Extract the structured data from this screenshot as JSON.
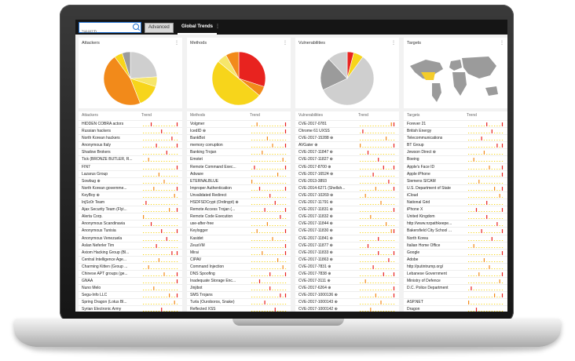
{
  "search": {
    "placeholder": "Search"
  },
  "toolbar": {
    "advanced_label": "Advanced"
  },
  "tabs": [
    {
      "label": "Global Trends",
      "menu": "⋮"
    }
  ],
  "colors": {
    "red": "#e8231f",
    "orange": "#f28a1a",
    "yellow": "#f7d51b",
    "light_yellow": "#f6e66a",
    "gray": "#cfcfcf",
    "dark_gray": "#9b9b9b",
    "map_highlight": "#f4cc2a"
  },
  "panels": [
    {
      "title": "Attackers",
      "menu": "⋮",
      "col1": "Attackers",
      "col2": "Trend",
      "chart": "pie",
      "rows": [
        "HIDDEN COBRA actors",
        "Russian hackers",
        "North Korean hackers",
        "Anonymous Italy",
        "Shadow Brokers",
        "Tick (BRONZE BUTLER, R...",
        "FIN7",
        "Lazarus Group",
        "Sowbug ⊕",
        "North Korean governme...",
        "KeyBoy ⊕",
        "InjSc0r Team",
        "Ajax Security Team (Flyi...",
        "Alerta Corp.",
        "Anonymous Scandinavia",
        "Anonymous Tunisia",
        "Anonymous Venezuela",
        "Aslan Neferler Tim",
        "Axiom Hacking Group (Bl...",
        "Central Intelligence Age...",
        "Charming Kitten (Group ...",
        "Chinese APT groups (ge...",
        "GNAA",
        "Nuno Melo",
        "Segu-Info LLC",
        "Spring Dragon (Lotus Bl...",
        "Syrian Electronic Army"
      ]
    },
    {
      "title": "Methods",
      "menu": "⋮",
      "col1": "Methods",
      "col2": "Trend",
      "chart": "pie",
      "rows": [
        "Volgmer",
        "IcedID ⊕",
        "BankBot",
        "memory corruption",
        "Banking Trojan",
        "Emotet",
        "Remote Command Exec...",
        "Adware",
        "ETERNALBLUE",
        "Improper Authentication",
        "Unvalidated Redirect",
        "HSDFSDCrypt (Ordinypt) ⊕",
        "Remote Access Trojan (...",
        "Remote Code Execution",
        "use-after-free",
        "Keylogger",
        "Kasidet",
        "ZeusVM",
        "Mirai",
        "CIPAV",
        "Command Injection",
        "DNS Spoofing",
        "Inadequate Storage Enc...",
        "Jinjibot",
        "SMS Trojans",
        "Turla (Ouroboros, Snake)",
        "Reflected XSS"
      ]
    },
    {
      "title": "Vulnerabilities",
      "menu": "⋮",
      "col1": "Vulnerabilities",
      "col2": "Trend",
      "chart": "pie",
      "rows": [
        "CVE-2017-0781",
        "Chrome 61 UXSS",
        "CVE-2017-15288 ⊕",
        "AVGater ⊕",
        "CVE-2017-11847 ⊕",
        "CVE-2017-11827 ⊕",
        "CVE-2017-8700 ⊕",
        "CVE-2017-16524 ⊕",
        "CVE-2013-3893",
        "CVE-2014-6271 (Shellsh...",
        "CVE-2017-10269 ⊕",
        "CVE-2017-11791 ⊕",
        "CVE-2017-11831 ⊕",
        "CVE-2017-11832 ⊕",
        "CVE-2017-11844 ⊕",
        "CVE-2017-11830 ⊕",
        "CVE-2017-11841 ⊕",
        "CVE-2017-11877 ⊕",
        "CVE-2017-11833 ⊕",
        "CVE-2017-11863 ⊕",
        "CVE-2017-7831 ⊕",
        "CVE-2017-7838 ⊕",
        "CVE-2017-3111 ⊕",
        "CVE-2017-6264 ⊕",
        "CVE-2017-1000136 ⊕",
        "CVE-2017-1000143 ⊕",
        "CVE-2017-1000142 ⊕"
      ]
    },
    {
      "title": "Targets",
      "menu": "⋮",
      "col1": "Targets",
      "col2": "Trend",
      "chart": "map",
      "rows": [
        "Forever 21",
        "British Energy",
        "Telecommunications",
        "BT Group",
        "Jewson Direct ⊕",
        "Boeing",
        "Apple's Face ID",
        "Apple iPhone",
        "Siemens SICAM",
        "U.S. Department of State",
        "iCloud",
        "National Grid",
        "iPhone X",
        "United Kingdom",
        "http://www.nzpathkeepe...",
        "Bakersfield City School ...",
        "North Korea",
        "Italian Home Office",
        "Google",
        "Adobe",
        "http://putintrump.org/",
        "Lebanese Government",
        "Ministry of Defence",
        "D.C. Police Department",
        "",
        "ASP.NET",
        "Dragon"
      ]
    }
  ],
  "pies": [
    [
      {
        "v": 24,
        "c": "gray"
      },
      {
        "v": 6,
        "c": "light_yellow"
      },
      {
        "v": 14,
        "c": "yellow"
      },
      {
        "v": 46,
        "c": "orange"
      },
      {
        "v": 5,
        "c": "yellow"
      },
      {
        "v": 5,
        "c": "dark_gray"
      }
    ],
    [
      {
        "v": 30,
        "c": "red"
      },
      {
        "v": 6,
        "c": "orange"
      },
      {
        "v": 50,
        "c": "yellow"
      },
      {
        "v": 6,
        "c": "light_yellow"
      },
      {
        "v": 8,
        "c": "orange"
      }
    ],
    [
      {
        "v": 4,
        "c": "red"
      },
      {
        "v": 6,
        "c": "yellow"
      },
      {
        "v": 58,
        "c": "gray"
      },
      {
        "v": 20,
        "c": "dark_gray"
      },
      {
        "v": 12,
        "c": "gray"
      }
    ]
  ],
  "trend_seed": [
    3,
    7,
    11,
    5,
    9,
    2,
    13,
    6,
    8,
    4,
    12,
    1,
    10,
    14,
    3,
    7,
    9,
    5,
    11,
    6,
    2,
    8,
    13,
    4,
    10,
    12,
    7
  ]
}
